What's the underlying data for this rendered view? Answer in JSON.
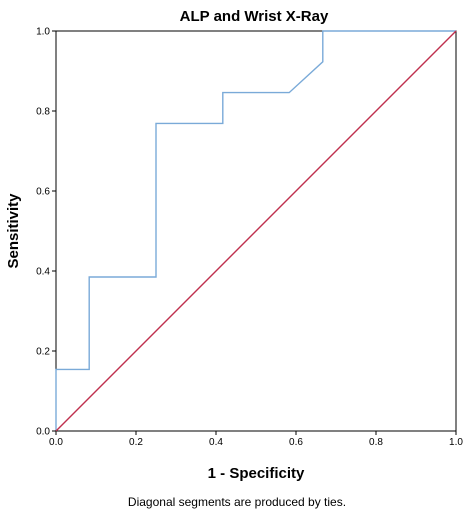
{
  "chart_data": {
    "type": "line",
    "title": "ALP and Wrist X-Ray",
    "xlabel": "1 - Specificity",
    "ylabel": "Sensitivity",
    "xlim": [
      0,
      1
    ],
    "ylim": [
      0,
      1
    ],
    "xticks": [
      "0.0",
      "0.2",
      "0.4",
      "0.6",
      "0.8",
      "1.0"
    ],
    "yticks": [
      "0.0",
      "0.2",
      "0.4",
      "0.6",
      "0.8",
      "1.0"
    ],
    "grid": false,
    "series": [
      {
        "color": "#7aaad8",
        "x": [
          0,
          0,
          0.083,
          0.083,
          0.25,
          0.25,
          0.417,
          0.417,
          0.583,
          0.667,
          0.667,
          1.0
        ],
        "y": [
          0,
          0.154,
          0.154,
          0.385,
          0.385,
          0.769,
          0.769,
          0.846,
          0.846,
          0.923,
          1.0,
          1.0
        ]
      },
      {
        "color": "#c0304e",
        "x": [
          0,
          1
        ],
        "y": [
          0,
          1
        ]
      }
    ],
    "footnote": "Diagonal segments are produced by ties."
  }
}
